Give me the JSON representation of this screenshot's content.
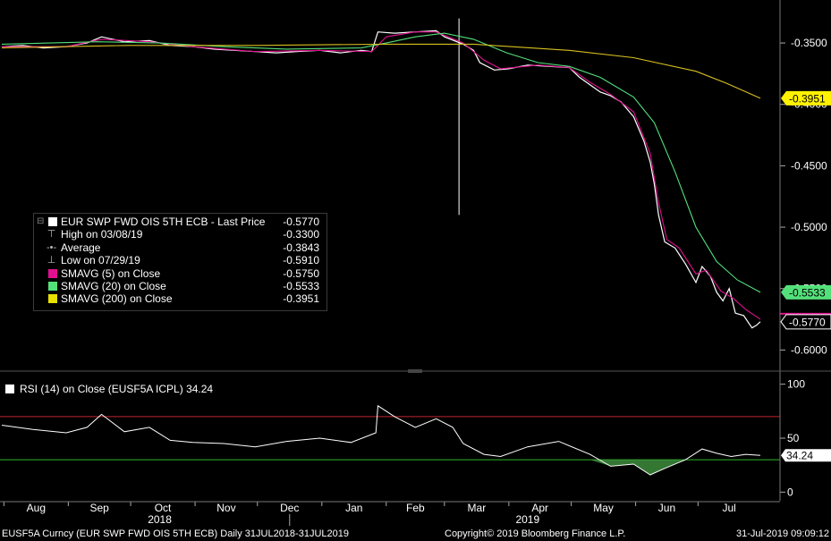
{
  "legend": {
    "title": "EUR SWP FWD OIS 5TH ECB - Last Price",
    "title_value": "-0.5770",
    "rows": [
      {
        "label": "High on 03/08/19",
        "value": "-0.3300",
        "glyph": "⊤"
      },
      {
        "label": "Average",
        "value": "-0.3843",
        "glyph": "-•-"
      },
      {
        "label": "Low on 07/29/19",
        "value": "-0.5910",
        "glyph": "⊥"
      },
      {
        "label": "SMAVG (5)  on Close",
        "value": "-0.5750",
        "color": "#e0108f"
      },
      {
        "label": "SMAVG (20)  on Close",
        "value": "-0.5533",
        "color": "#53e07a"
      },
      {
        "label": "SMAVG (200)  on Close",
        "value": "-0.3951",
        "color": "#e8e000"
      }
    ]
  },
  "rsi_legend": "RSI (14)  on Close (EUSF5A ICPL) 34.24",
  "footer": {
    "left": "EUSF5A Curncy (EUR SWP FWD OIS 5TH ECB)  Daily 31JUL2018-31JUL2019",
    "center": "Copyright© 2019 Bloomberg Finance L.P.",
    "right": "31-Jul-2019 09:09:12"
  },
  "colors": {
    "background": "#000000",
    "price": "#ffffff",
    "sma5": "#e0108f",
    "sma20": "#53e07a",
    "sma200": "#d8c020",
    "rsi_upper": "#c0242c",
    "rsi_lower": "#2eb82e",
    "rsi_fill": "#3c8c3c",
    "tag_yellow": "#fff200",
    "tag_green": "#53e07a"
  },
  "chart_data": [
    {
      "type": "line",
      "ylim": [
        -0.615,
        -0.315
      ],
      "y_ticks": [
        -0.35,
        -0.4,
        -0.45,
        -0.5,
        -0.55,
        -0.6
      ],
      "y_tick_labels": [
        "-0.3500",
        "-0.4000",
        "-0.4500",
        "-0.5000",
        "-0.5500",
        "-0.6000"
      ],
      "x_start": "2018-07-31",
      "x_end": "2019-07-31",
      "x_month_labels": [
        "Aug",
        "Sep",
        "Oct",
        "Nov",
        "Dec",
        "Jan",
        "Feb",
        "Mar",
        "Apr",
        "May",
        "Jun",
        "Jul"
      ],
      "x_year_labels": [
        "2018",
        "2019"
      ],
      "last_value_tags": [
        {
          "series": "SMAVG (200)",
          "label": "-0.3951"
        },
        {
          "series": "SMAVG (20)",
          "label": "-0.5533"
        },
        {
          "series": "Last Price",
          "label": "-0.5770"
        }
      ],
      "spike": {
        "date": "2019-03-08",
        "high": -0.33,
        "low": -0.49
      },
      "series": [
        {
          "name": "EUR SWP FWD OIS 5TH ECB - Last Price",
          "points": [
            [
              "2018-07-31",
              -0.353
            ],
            [
              "2018-08-10",
              -0.352
            ],
            [
              "2018-08-20",
              -0.354
            ],
            [
              "2018-08-31",
              -0.353
            ],
            [
              "2018-09-10",
              -0.35
            ],
            [
              "2018-09-17",
              -0.345
            ],
            [
              "2018-09-28",
              -0.349
            ],
            [
              "2018-10-10",
              -0.348
            ],
            [
              "2018-10-20",
              -0.352
            ],
            [
              "2018-10-31",
              -0.353
            ],
            [
              "2018-11-10",
              -0.355
            ],
            [
              "2018-11-20",
              -0.356
            ],
            [
              "2018-11-30",
              -0.357
            ],
            [
              "2018-12-10",
              -0.358
            ],
            [
              "2018-12-20",
              -0.357
            ],
            [
              "2018-12-31",
              -0.356
            ],
            [
              "2019-01-10",
              -0.358
            ],
            [
              "2019-01-20",
              -0.356
            ],
            [
              "2019-01-25",
              -0.357
            ],
            [
              "2019-01-28",
              -0.341
            ],
            [
              "2019-02-05",
              -0.342
            ],
            [
              "2019-02-15",
              -0.341
            ],
            [
              "2019-02-25",
              -0.34
            ],
            [
              "2019-03-01",
              -0.345
            ],
            [
              "2019-03-10",
              -0.351
            ],
            [
              "2019-03-15",
              -0.356
            ],
            [
              "2019-03-18",
              -0.366
            ],
            [
              "2019-03-25",
              -0.372
            ],
            [
              "2019-04-01",
              -0.371
            ],
            [
              "2019-04-10",
              -0.368
            ],
            [
              "2019-04-20",
              -0.369
            ],
            [
              "2019-04-30",
              -0.37
            ],
            [
              "2019-05-05",
              -0.378
            ],
            [
              "2019-05-10",
              -0.384
            ],
            [
              "2019-05-15",
              -0.39
            ],
            [
              "2019-05-20",
              -0.393
            ],
            [
              "2019-05-25",
              -0.398
            ],
            [
              "2019-05-31",
              -0.41
            ],
            [
              "2019-06-05",
              -0.43
            ],
            [
              "2019-06-08",
              -0.447
            ],
            [
              "2019-06-10",
              -0.465
            ],
            [
              "2019-06-12",
              -0.49
            ],
            [
              "2019-06-15",
              -0.512
            ],
            [
              "2019-06-20",
              -0.517
            ],
            [
              "2019-06-25",
              -0.53
            ],
            [
              "2019-06-30",
              -0.545
            ],
            [
              "2019-07-03",
              -0.532
            ],
            [
              "2019-07-07",
              -0.54
            ],
            [
              "2019-07-10",
              -0.553
            ],
            [
              "2019-07-13",
              -0.56
            ],
            [
              "2019-07-16",
              -0.55
            ],
            [
              "2019-07-19",
              -0.57
            ],
            [
              "2019-07-23",
              -0.572
            ],
            [
              "2019-07-27",
              -0.582
            ],
            [
              "2019-07-29",
              -0.58
            ],
            [
              "2019-07-31",
              -0.577
            ]
          ]
        },
        {
          "name": "SMAVG (5)  on Close",
          "points": [
            [
              "2018-07-31",
              -0.353
            ],
            [
              "2018-08-31",
              -0.353
            ],
            [
              "2018-09-17",
              -0.347
            ],
            [
              "2018-10-10",
              -0.349
            ],
            [
              "2018-10-31",
              -0.353
            ],
            [
              "2018-11-30",
              -0.357
            ],
            [
              "2018-12-31",
              -0.356
            ],
            [
              "2019-01-25",
              -0.357
            ],
            [
              "2019-02-01",
              -0.345
            ],
            [
              "2019-02-15",
              -0.341
            ],
            [
              "2019-02-25",
              -0.341
            ],
            [
              "2019-03-10",
              -0.35
            ],
            [
              "2019-03-20",
              -0.364
            ],
            [
              "2019-03-28",
              -0.371
            ],
            [
              "2019-04-15",
              -0.368
            ],
            [
              "2019-04-30",
              -0.37
            ],
            [
              "2019-05-10",
              -0.382
            ],
            [
              "2019-05-20",
              -0.392
            ],
            [
              "2019-05-31",
              -0.406
            ],
            [
              "2019-06-08",
              -0.44
            ],
            [
              "2019-06-12",
              -0.48
            ],
            [
              "2019-06-16",
              -0.51
            ],
            [
              "2019-06-22",
              -0.517
            ],
            [
              "2019-06-30",
              -0.538
            ],
            [
              "2019-07-05",
              -0.535
            ],
            [
              "2019-07-12",
              -0.552
            ],
            [
              "2019-07-18",
              -0.558
            ],
            [
              "2019-07-24",
              -0.567
            ],
            [
              "2019-07-31",
              -0.575
            ]
          ]
        },
        {
          "name": "SMAVG (20)  on Close",
          "points": [
            [
              "2018-07-31",
              -0.351
            ],
            [
              "2018-09-15",
              -0.349
            ],
            [
              "2018-10-15",
              -0.35
            ],
            [
              "2018-11-15",
              -0.353
            ],
            [
              "2018-12-15",
              -0.355
            ],
            [
              "2019-01-20",
              -0.354
            ],
            [
              "2019-02-01",
              -0.35
            ],
            [
              "2019-02-15",
              -0.345
            ],
            [
              "2019-03-01",
              -0.342
            ],
            [
              "2019-03-15",
              -0.347
            ],
            [
              "2019-03-31",
              -0.358
            ],
            [
              "2019-04-15",
              -0.366
            ],
            [
              "2019-04-30",
              -0.369
            ],
            [
              "2019-05-15",
              -0.378
            ],
            [
              "2019-05-31",
              -0.394
            ],
            [
              "2019-06-10",
              -0.415
            ],
            [
              "2019-06-20",
              -0.455
            ],
            [
              "2019-06-30",
              -0.5
            ],
            [
              "2019-07-10",
              -0.528
            ],
            [
              "2019-07-20",
              -0.543
            ],
            [
              "2019-07-31",
              -0.553
            ]
          ]
        },
        {
          "name": "SMAVG (200)  on Close",
          "points": [
            [
              "2018-07-31",
              -0.354
            ],
            [
              "2018-09-30",
              -0.352
            ],
            [
              "2018-11-30",
              -0.352
            ],
            [
              "2019-01-31",
              -0.351
            ],
            [
              "2019-03-15",
              -0.351
            ],
            [
              "2019-04-30",
              -0.356
            ],
            [
              "2019-05-31",
              -0.362
            ],
            [
              "2019-06-30",
              -0.373
            ],
            [
              "2019-07-15",
              -0.383
            ],
            [
              "2019-07-31",
              -0.395
            ]
          ]
        }
      ]
    },
    {
      "type": "line",
      "ylim": [
        -8,
        108
      ],
      "y_ticks": [
        0,
        50,
        100
      ],
      "y_tick_labels": [
        "0",
        "50",
        "100"
      ],
      "reference_lines": [
        70,
        30
      ],
      "last_value_tag": "34.24",
      "series": [
        {
          "name": "RSI (14)  on Close (EUSF5A ICPL)",
          "points": [
            [
              "2018-07-31",
              62
            ],
            [
              "2018-08-15",
              58
            ],
            [
              "2018-08-31",
              55
            ],
            [
              "2018-09-10",
              60
            ],
            [
              "2018-09-17",
              72
            ],
            [
              "2018-09-28",
              56
            ],
            [
              "2018-10-10",
              60
            ],
            [
              "2018-10-20",
              48
            ],
            [
              "2018-10-31",
              46
            ],
            [
              "2018-11-15",
              45
            ],
            [
              "2018-11-30",
              42
            ],
            [
              "2018-12-15",
              47
            ],
            [
              "2018-12-31",
              50
            ],
            [
              "2019-01-15",
              46
            ],
            [
              "2019-01-27",
              55
            ],
            [
              "2019-01-28",
              80
            ],
            [
              "2019-02-05",
              70
            ],
            [
              "2019-02-15",
              60
            ],
            [
              "2019-02-25",
              68
            ],
            [
              "2019-03-05",
              60
            ],
            [
              "2019-03-10",
              45
            ],
            [
              "2019-03-20",
              35
            ],
            [
              "2019-03-28",
              33
            ],
            [
              "2019-04-10",
              42
            ],
            [
              "2019-04-25",
              47
            ],
            [
              "2019-05-10",
              35
            ],
            [
              "2019-05-20",
              24
            ],
            [
              "2019-05-31",
              26
            ],
            [
              "2019-06-08",
              16
            ],
            [
              "2019-06-15",
              22
            ],
            [
              "2019-06-25",
              30
            ],
            [
              "2019-07-03",
              40
            ],
            [
              "2019-07-10",
              36
            ],
            [
              "2019-07-17",
              33
            ],
            [
              "2019-07-24",
              35
            ],
            [
              "2019-07-31",
              34
            ]
          ]
        }
      ]
    }
  ]
}
